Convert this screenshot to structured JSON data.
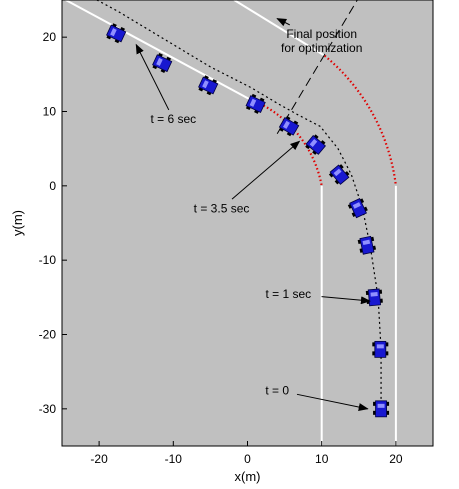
{
  "chart_data": {
    "type": "scatter",
    "title": "",
    "xlabel": "x(m)",
    "ylabel": "y(m)",
    "xlim": [
      -25,
      25
    ],
    "ylim": [
      -35,
      25
    ],
    "xticks": [
      -20,
      -10,
      0,
      10,
      20
    ],
    "yticks": [
      -30,
      -20,
      -10,
      0,
      10,
      20
    ],
    "grid": false,
    "colors": {
      "background": "#c0c0c0",
      "road_lines": "#ffffff",
      "curve_dots": "#e00000",
      "vehicle": "#1818d0",
      "vehicle_outline": "#000000",
      "path": "#000000",
      "final_line": "#000000"
    },
    "vehicle_icon": "car-icon",
    "road": {
      "inner_edge": [
        [
          -24.5,
          25
        ],
        [
          0.2,
          11.7
        ]
      ],
      "outer_edge": [
        [
          -1.8,
          25
        ],
        [
          10.4,
          17.5
        ]
      ],
      "inner_curb": [
        [
          10,
          0
        ],
        [
          10,
          -35
        ]
      ],
      "outer_curb": [
        [
          20,
          0
        ],
        [
          20,
          -35
        ]
      ],
      "inner_arc": {
        "center": [
          -10,
          0
        ],
        "from": [
          0.2,
          11.7
        ],
        "to": [
          10,
          0
        ]
      },
      "outer_arc": {
        "center": [
          -10,
          0
        ],
        "from": [
          10.4,
          17.5
        ],
        "to": [
          20,
          0
        ]
      }
    },
    "final_position_line": {
      "x": [
        4,
        16
      ],
      "y": [
        7,
        27
      ]
    },
    "trajectory": {
      "name": "Vehicle path",
      "x": [
        18,
        18,
        17.6,
        16.6,
        15.5,
        14,
        12.2,
        9.8,
        6.9,
        4.2,
        0.5,
        -5,
        -10,
        -17.5,
        -24
      ],
      "y": [
        -30,
        -22,
        -15,
        -8.5,
        -3,
        1.5,
        5,
        8,
        9.5,
        11,
        13.2,
        16,
        19,
        23.5,
        27
      ]
    },
    "vehicle_positions": {
      "x": [
        18,
        17.9,
        17.1,
        16.1,
        14.9,
        12.4,
        9.2,
        5.6,
        1.1,
        -5.3,
        -11.5,
        -17.7
      ],
      "y": [
        -30,
        -22,
        -15,
        -8,
        -3,
        1.5,
        5.5,
        8,
        11,
        13.5,
        16.5,
        20.5
      ],
      "heading_deg": [
        90,
        90,
        95,
        102,
        115,
        130,
        140,
        150,
        155,
        155,
        155,
        155
      ]
    },
    "annotations": [
      {
        "label": "Final position\nfor optimization",
        "text_at": [
          10,
          19.5
        ],
        "arrow_to": [
          4,
          22.5
        ]
      },
      {
        "label": "t = 6 sec",
        "text_at": [
          -10,
          9
        ],
        "arrow_to": [
          -15,
          19
        ]
      },
      {
        "label": "t = 3.5 sec",
        "text_at": [
          -3.5,
          -3
        ],
        "arrow_to": [
          7,
          6
        ]
      },
      {
        "label": "t = 1 sec",
        "text_at": [
          5.5,
          -14.5
        ],
        "arrow_to": [
          16.5,
          -15.5
        ]
      },
      {
        "label": "t = 0",
        "text_at": [
          4,
          -27.5
        ],
        "arrow_to": [
          16.2,
          -30
        ]
      }
    ]
  }
}
